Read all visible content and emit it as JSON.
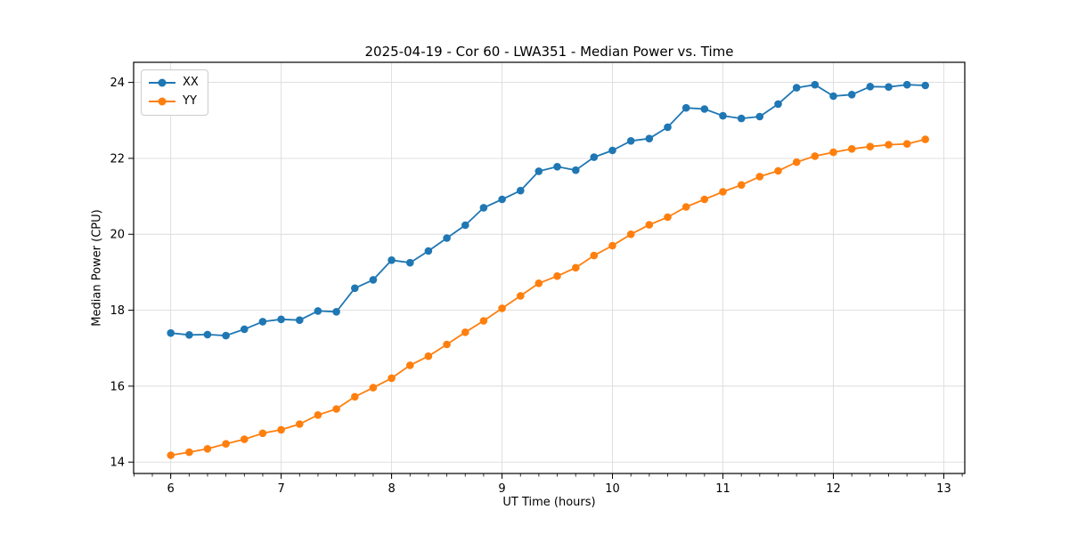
{
  "chart_data": {
    "type": "line",
    "title": "2025-04-19 - Cor 60 - LWA351 - Median Power vs. Time",
    "xlabel": "UT Time (hours)",
    "ylabel": "Median Power (CPU)",
    "xlim": [
      5.664,
      13.19
    ],
    "ylim": [
      13.7,
      24.53
    ],
    "xticks": [
      6,
      7,
      8,
      9,
      10,
      11,
      12,
      13
    ],
    "yticks": [
      14,
      16,
      18,
      20,
      22,
      24
    ],
    "minor_x_step": 0.1666667,
    "grid": true,
    "grid_color": "#dcdcdc",
    "legend_position": "upper-left",
    "x": [
      6.0,
      6.167,
      6.333,
      6.5,
      6.667,
      6.833,
      7.0,
      7.167,
      7.333,
      7.5,
      7.667,
      7.833,
      8.0,
      8.167,
      8.333,
      8.5,
      8.667,
      8.833,
      9.0,
      9.167,
      9.333,
      9.5,
      9.667,
      9.833,
      10.0,
      10.167,
      10.333,
      10.5,
      10.667,
      10.833,
      11.0,
      11.167,
      11.333,
      11.5,
      11.667,
      11.833,
      12.0,
      12.167,
      12.333,
      12.5,
      12.667,
      12.833
    ],
    "series": [
      {
        "name": "XX",
        "color": "#1f77b4",
        "values": [
          17.4,
          17.35,
          17.36,
          17.33,
          17.5,
          17.7,
          17.76,
          17.74,
          17.98,
          17.96,
          18.58,
          18.8,
          19.32,
          19.25,
          19.56,
          19.9,
          20.24,
          20.7,
          20.92,
          21.15,
          21.66,
          21.78,
          21.69,
          22.03,
          22.21,
          22.46,
          22.52,
          22.82,
          23.33,
          23.3,
          23.12,
          23.05,
          23.1,
          23.43,
          23.86,
          23.94,
          23.64,
          23.68,
          23.89,
          23.88,
          23.94,
          23.92
        ]
      },
      {
        "name": "YY",
        "color": "#ff7f0e",
        "values": [
          14.18,
          14.26,
          14.35,
          14.48,
          14.6,
          14.76,
          14.85,
          15.0,
          15.24,
          15.4,
          15.72,
          15.96,
          16.21,
          16.55,
          16.79,
          17.1,
          17.42,
          17.72,
          18.05,
          18.38,
          18.71,
          18.9,
          19.12,
          19.44,
          19.7,
          20.0,
          20.25,
          20.45,
          20.72,
          20.92,
          21.12,
          21.3,
          21.52,
          21.67,
          21.9,
          22.06,
          22.16,
          22.25,
          22.31,
          22.36,
          22.38,
          22.5
        ]
      }
    ]
  }
}
